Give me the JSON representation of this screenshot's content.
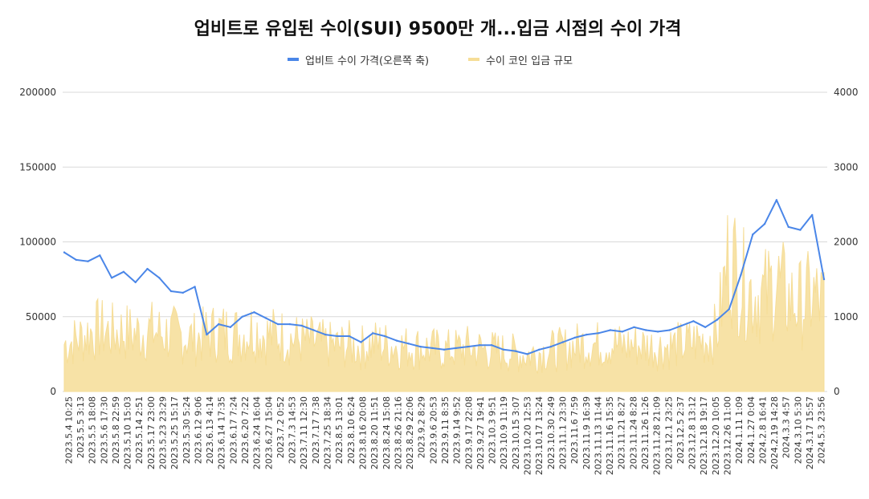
{
  "chart_data": {
    "type": "line",
    "title": "업비트로 유입된 수이(SUI) 9500만 개...입금 시점의 수이 가격",
    "legend": {
      "placement": "top-center",
      "items": [
        {
          "name": "업비트 수이 가격(오른쪽 축)",
          "color": "#4a86e8"
        },
        {
          "name": "수이 코인 입금 규모",
          "color": "#f6dd97"
        }
      ]
    },
    "y_left": {
      "ticks": [
        "0",
        "50000",
        "100000",
        "150000",
        "200000"
      ],
      "range": [
        0,
        200000
      ]
    },
    "y_right": {
      "ticks": [
        "0",
        "1000",
        "2000",
        "3000",
        "4000"
      ],
      "range": [
        0,
        4000
      ]
    },
    "grid": true,
    "x_categories": [
      "2023.5.4 10:25",
      "2023.5.5 3:13",
      "2023.5.5 18:08",
      "2023.5.6 17:30",
      "2023.5.8 22:59",
      "2023.5.10 15:03",
      "2023.5.14 2:51",
      "2023.5.17 23:00",
      "2023.5.23 23:29",
      "2023.5.25 15:17",
      "2023.5.30 5:24",
      "2023.6.12 9:06",
      "2023.6.13 4:14",
      "2023.6.14 17:35",
      "2023.6.17 7:24",
      "2023.6.20 7:22",
      "2023.6.24 16:04",
      "2023.6.27 15:04",
      "2023.7.2 0:52",
      "2023.7.3 14:53",
      "2023.7.11 12:30",
      "2023.7.17 7:38",
      "2023.7.25 18:34",
      "2023.8.5 13:01",
      "2023.8.10 6:24",
      "2023.8.16 20:08",
      "2023.8.20 11:51",
      "2023.8.24 15:08",
      "2023.8.26 21:16",
      "2023.8.29 22:06",
      "2023.9.2 8:29",
      "2023.9.6 20:53",
      "2023.9.11 8:35",
      "2023.9.14 9:52",
      "2023.9.17 22:08",
      "2023.9.27 19:41",
      "2023.10.3 9:51",
      "2023.10.9 11:19",
      "2023.10.15 3:07",
      "2023.10.20 12:53",
      "2023.10.17 13:24",
      "2023.10.30 2:49",
      "2023.11.1 23:30",
      "2023.11.6 7:59",
      "2023.11.9 16:39",
      "2023.11.13 11:44",
      "2023.11.16 15:35",
      "2023.11.21 8:27",
      "2023.11.24 8:28",
      "2023.11.26 1:26",
      "2023.11.28 21:09",
      "2023.12.1 23:25",
      "2023.12.5 2:37",
      "2023.12.8 13:12",
      "2023.12.18 19:17",
      "2023.12.20 10:05",
      "2023.12.26 11:00",
      "2024.1.11 1:09",
      "2024.1.27 0:04",
      "2024.2.8 16:41",
      "2024.2.19 14:28",
      "2024.3.3 4:57",
      "2024.3.10 5:30",
      "2024.3.17 15:57",
      "2024.5.3 23:56"
    ],
    "series": [
      {
        "name": "업비트 수이 가격(오른쪽 축)",
        "axis": "left",
        "color": "#4a86e8",
        "values": [
          93000,
          88000,
          87000,
          91000,
          76000,
          80000,
          73000,
          82000,
          76000,
          67000,
          66000,
          70000,
          38000,
          45000,
          43000,
          50000,
          53000,
          49000,
          45000,
          45000,
          44000,
          41000,
          38000,
          37000,
          37000,
          33000,
          39000,
          37000,
          34000,
          32000,
          30000,
          29000,
          28000,
          29000,
          30000,
          31000,
          31000,
          28000,
          27000,
          25000,
          28000,
          30000,
          33000,
          36000,
          38000,
          39000,
          41000,
          40000,
          43000,
          41000,
          40000,
          41000,
          44000,
          47000,
          43000,
          48000,
          55000,
          78000,
          105000,
          112000,
          128000,
          110000,
          108000,
          118000,
          75000
        ]
      },
      {
        "name": "수이 코인 입금 규모",
        "axis": "right",
        "color": "#f6dd97",
        "values": [
          650,
          700,
          800,
          850,
          800,
          820,
          780,
          840,
          800,
          780,
          760,
          720,
          780,
          820,
          800,
          780,
          860,
          760,
          780,
          720,
          700,
          680,
          640,
          620,
          640,
          600,
          660,
          640,
          620,
          600,
          600,
          580,
          560,
          580,
          600,
          580,
          560,
          540,
          520,
          500,
          540,
          560,
          580,
          620,
          660,
          640,
          660,
          620,
          640,
          620,
          600,
          620,
          640,
          680,
          700,
          820,
          1900,
          1500,
          1350,
          1300,
          1500,
          1250,
          1200,
          1300,
          1200
        ]
      }
    ]
  }
}
